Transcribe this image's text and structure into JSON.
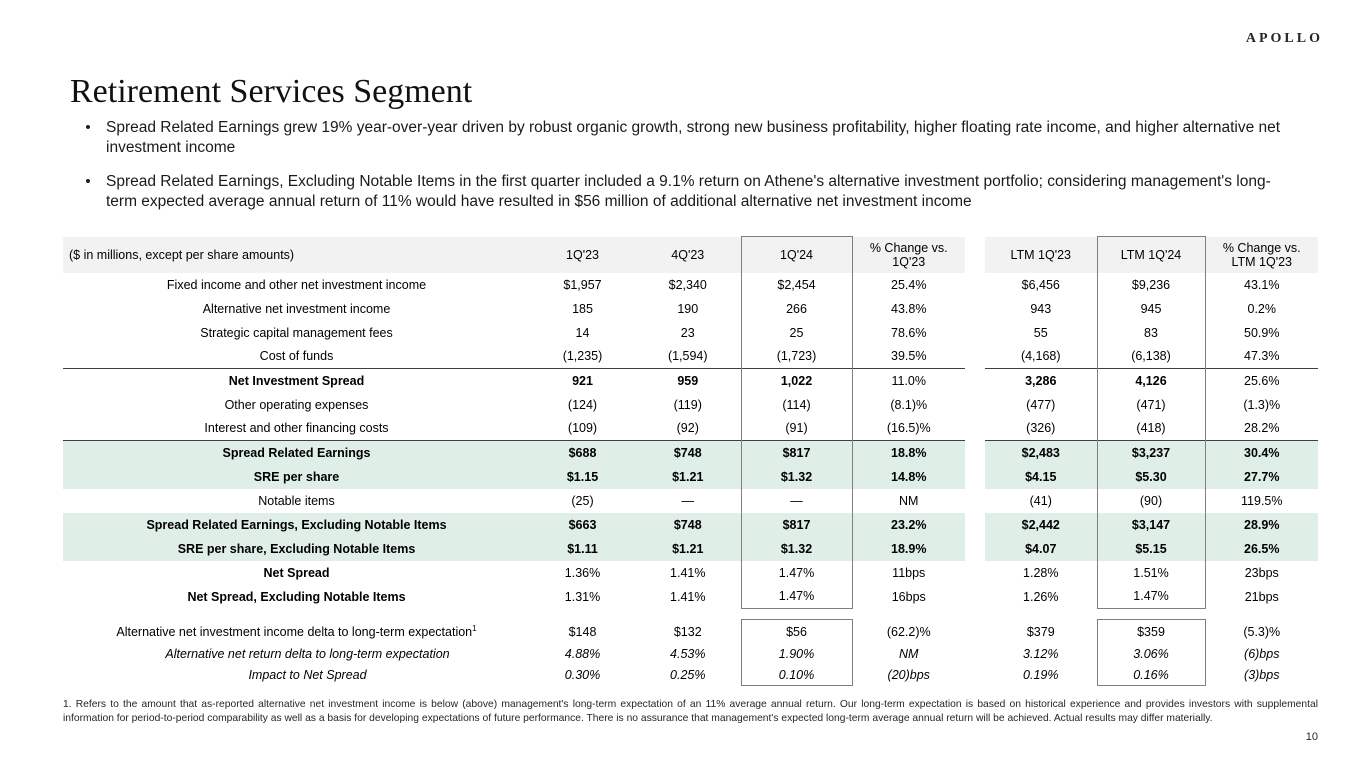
{
  "logo": "APOLLO",
  "title": "Retirement Services Segment",
  "bullets": [
    "Spread Related Earnings grew 19% year-over-year driven by robust organic growth, strong new business profitability, higher floating rate income, and higher alternative net investment income",
    "Spread Related Earnings, Excluding Notable Items in the first quarter included a 9.1% return on Athene's alternative investment portfolio; considering management's long-term expected average annual return of 11% would have resulted in $56 million of additional alternative net investment income"
  ],
  "table": {
    "caption": "($ in millions, except per share amounts)",
    "columns": [
      "1Q'23",
      "4Q'23",
      "1Q'24",
      "% Change vs.\n1Q'23",
      "LTM 1Q'23",
      "LTM 1Q'24",
      "% Change vs.\nLTM 1Q'23"
    ],
    "rows": [
      {
        "label": "Fixed income and other net investment income",
        "style": "normal",
        "values": [
          "$1,957",
          "$2,340",
          "$2,454",
          "25.4%",
          "$6,456",
          "$9,236",
          "43.1%"
        ]
      },
      {
        "label": "Alternative net investment income",
        "style": "normal",
        "values": [
          "185",
          "190",
          "266",
          "43.8%",
          "943",
          "945",
          "0.2%"
        ]
      },
      {
        "label": "Strategic capital management fees",
        "style": "normal",
        "values": [
          "14",
          "23",
          "25",
          "78.6%",
          "55",
          "83",
          "50.9%"
        ]
      },
      {
        "label": "Cost of funds",
        "style": "normal",
        "values": [
          "(1,235)",
          "(1,594)",
          "(1,723)",
          "39.5%",
          "(4,168)",
          "(6,138)",
          "47.3%"
        ]
      },
      {
        "label": "Net Investment Spread",
        "style": "subtotal",
        "top_border": true,
        "values": [
          "921",
          "959",
          "1,022",
          "11.0%",
          "3,286",
          "4,126",
          "25.6%"
        ]
      },
      {
        "label": "Other operating expenses",
        "style": "normal",
        "values": [
          "(124)",
          "(119)",
          "(114)",
          "(8.1)%",
          "(477)",
          "(471)",
          "(1.3)%"
        ]
      },
      {
        "label": "Interest and other financing costs",
        "style": "normal",
        "values": [
          "(109)",
          "(92)",
          "(91)",
          "(16.5)%",
          "(326)",
          "(418)",
          "28.2%"
        ]
      },
      {
        "label": "Spread Related Earnings",
        "style": "highlight",
        "top_border": true,
        "values": [
          "$688",
          "$748",
          "$817",
          "18.8%",
          "$2,483",
          "$3,237",
          "30.4%"
        ]
      },
      {
        "label": "SRE per share",
        "style": "highlight",
        "values": [
          "$1.15",
          "$1.21",
          "$1.32",
          "14.8%",
          "$4.15",
          "$5.30",
          "27.7%"
        ]
      },
      {
        "label": "Notable items",
        "style": "normal",
        "values": [
          "(25)",
          "—",
          "—",
          "NM",
          "(41)",
          "(90)",
          "119.5%"
        ]
      },
      {
        "label": "Spread Related Earnings, Excluding Notable Items",
        "style": "highlight",
        "values": [
          "$663",
          "$748",
          "$817",
          "23.2%",
          "$2,442",
          "$3,147",
          "28.9%"
        ]
      },
      {
        "label": "SRE per share, Excluding Notable Items",
        "style": "highlight",
        "values": [
          "$1.11",
          "$1.21",
          "$1.32",
          "18.9%",
          "$4.07",
          "$5.15",
          "26.5%"
        ]
      },
      {
        "label": "Net Spread",
        "style": "label-bold",
        "values": [
          "1.36%",
          "1.41%",
          "1.47%",
          "11bps",
          "1.28%",
          "1.51%",
          "23bps"
        ]
      },
      {
        "label": "Net Spread, Excluding Notable Items",
        "style": "label-bold",
        "box_bottom": true,
        "values": [
          "1.31%",
          "1.41%",
          "1.47%",
          "16bps",
          "1.26%",
          "1.47%",
          "21bps"
        ]
      },
      {
        "label": "Alternative net investment income delta to long-term expectation",
        "sup": "1",
        "style": "normal",
        "gap_above": true,
        "box_top": true,
        "values": [
          "$148",
          "$132",
          "$56",
          "(62.2)%",
          "$379",
          "$359",
          "(5.3)%"
        ]
      },
      {
        "label": "Alternative net return delta to long-term expectation",
        "style": "sub-italic",
        "values": [
          "4.88%",
          "4.53%",
          "1.90%",
          "NM",
          "3.12%",
          "3.06%",
          "(6)bps"
        ]
      },
      {
        "label": "Impact to Net Spread",
        "style": "sub-italic",
        "box_bottom": true,
        "values": [
          "0.30%",
          "0.25%",
          "0.10%",
          "(20)bps",
          "0.19%",
          "0.16%",
          "(3)bps"
        ]
      }
    ]
  },
  "footnote": "1. Refers to the amount that as-reported alternative net investment income is below (above) management's long-term expectation of an 11% average annual return. Our long-term expectation is based on historical experience and provides investors with supplemental information for period-to-period comparability as well as a basis for developing expectations of future performance. There is no assurance that management's expected long-term average annual return will be achieved. Actual results may differ materially.",
  "page_number": "10",
  "colors": {
    "highlight_row": "#e0eee8",
    "header_bg": "#f2f2f2",
    "box_border": "#7f7f7f",
    "subtotal_line": "#3f3f3f"
  }
}
